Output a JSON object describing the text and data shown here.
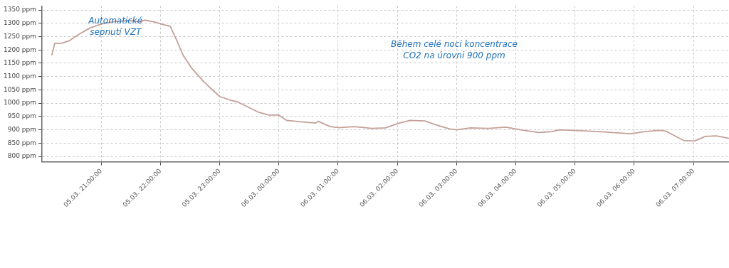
{
  "chart_data": {
    "type": "line",
    "x": [
      "--03-05T20:10",
      "--03-05T20:13",
      "--03-05T20:20",
      "--03-05T20:28",
      "--03-05T20:38",
      "--03-05T20:49",
      "--03-05T21:00",
      "--03-05T21:14",
      "--03-05T21:29",
      "--03-05T21:40",
      "--03-05T21:44",
      "--03-05T21:54",
      "--03-05T22:01",
      "--03-05T22:10",
      "--03-05T22:16",
      "--03-05T22:23",
      "--03-05T22:32",
      "--03-05T22:44",
      "--03-05T23:00",
      "--03-05T23:12",
      "--03-05T23:18",
      "--03-05T23:29",
      "--03-05T23:40",
      "--03-05T23:50",
      "--03-06T00:00",
      "--03-06T00:08",
      "--03-06T00:23",
      "--03-06T00:37",
      "--03-06T00:40",
      "--03-06T00:52",
      "--03-06T01:01",
      "--03-06T01:16",
      "--03-06T01:34",
      "--03-06T01:48",
      "--03-06T02:02",
      "--03-06T02:13",
      "--03-06T02:28",
      "--03-06T02:38",
      "--03-06T02:53",
      "--03-06T03:00",
      "--03-06T03:14",
      "--03-06T03:32",
      "--03-06T03:50",
      "--03-06T04:05",
      "--03-06T04:23",
      "--03-06T04:37",
      "--03-06T04:44",
      "--03-06T05:02",
      "--03-06T05:24",
      "--03-06T05:56",
      "--03-06T06:11",
      "--03-06T06:25",
      "--03-06T06:32",
      "--03-06T06:50",
      "--03-06T07:01",
      "--03-06T07:12",
      "--03-06T07:23",
      "--03-06T07:36"
    ],
    "series": [
      {
        "color": "#c4a097",
        "values": [
          1180,
          1225,
          1225,
          1235,
          1260,
          1283,
          1297,
          1307,
          1310,
          1305,
          1312,
          1305,
          1297,
          1288,
          1240,
          1180,
          1130,
          1080,
          1025,
          1010,
          1005,
          985,
          965,
          955,
          955,
          935,
          930,
          925,
          932,
          912,
          908,
          912,
          905,
          907,
          925,
          935,
          933,
          920,
          903,
          900,
          907,
          905,
          910,
          900,
          890,
          893,
          900,
          897,
          893,
          885,
          893,
          898,
          895,
          860,
          858,
          875,
          877,
          868
        ]
      }
    ],
    "xlim": [
      "--03-05T20:00",
      "--03-06T07:36"
    ],
    "xticks": [
      {
        "value": "--03-05T21:00",
        "label": "05.03. 21:00:00"
      },
      {
        "value": "--03-05T22:00",
        "label": "05.03. 22:00:00"
      },
      {
        "value": "--03-05T23:00",
        "label": "05.03. 23:00:00"
      },
      {
        "value": "--03-06T00:00",
        "label": "06.03. 00:00:00"
      },
      {
        "value": "--03-06T01:00",
        "label": "06.03. 01:00:00"
      },
      {
        "value": "--03-06T02:00",
        "label": "06.03. 02:00:00"
      },
      {
        "value": "--03-06T03:00",
        "label": "06.03. 03:00:00"
      },
      {
        "value": "--03-06T04:00",
        "label": "06.03. 04:00:00"
      },
      {
        "value": "--03-06T05:00",
        "label": "06.03. 05:00:00"
      },
      {
        "value": "--03-06T06:00",
        "label": "06.03. 06:00:00"
      },
      {
        "value": "--03-06T07:00",
        "label": "06.03. 07:00:00"
      }
    ],
    "ylim": [
      780,
      1365
    ],
    "yticks": [
      {
        "value": 800,
        "label": "800 ppm"
      },
      {
        "value": 850,
        "label": "850 ppm"
      },
      {
        "value": 900,
        "label": "900 ppm"
      },
      {
        "value": 950,
        "label": "950 ppm"
      },
      {
        "value": 1000,
        "label": "1000 ppm"
      },
      {
        "value": 1050,
        "label": "1050 ppm"
      },
      {
        "value": 1100,
        "label": "1100 ppm"
      },
      {
        "value": 1150,
        "label": "1150 ppm"
      },
      {
        "value": 1200,
        "label": "1200 ppm"
      },
      {
        "value": 1250,
        "label": "1250 ppm"
      },
      {
        "value": 1300,
        "label": "1300 ppm"
      },
      {
        "value": 1350,
        "label": "1350 ppm"
      }
    ],
    "grid": true,
    "marker": "none",
    "annotations": [
      "Automatické sepnutí VZT",
      "Během celé noci koncentrace CO2 na úrovni 900 ppm"
    ]
  }
}
